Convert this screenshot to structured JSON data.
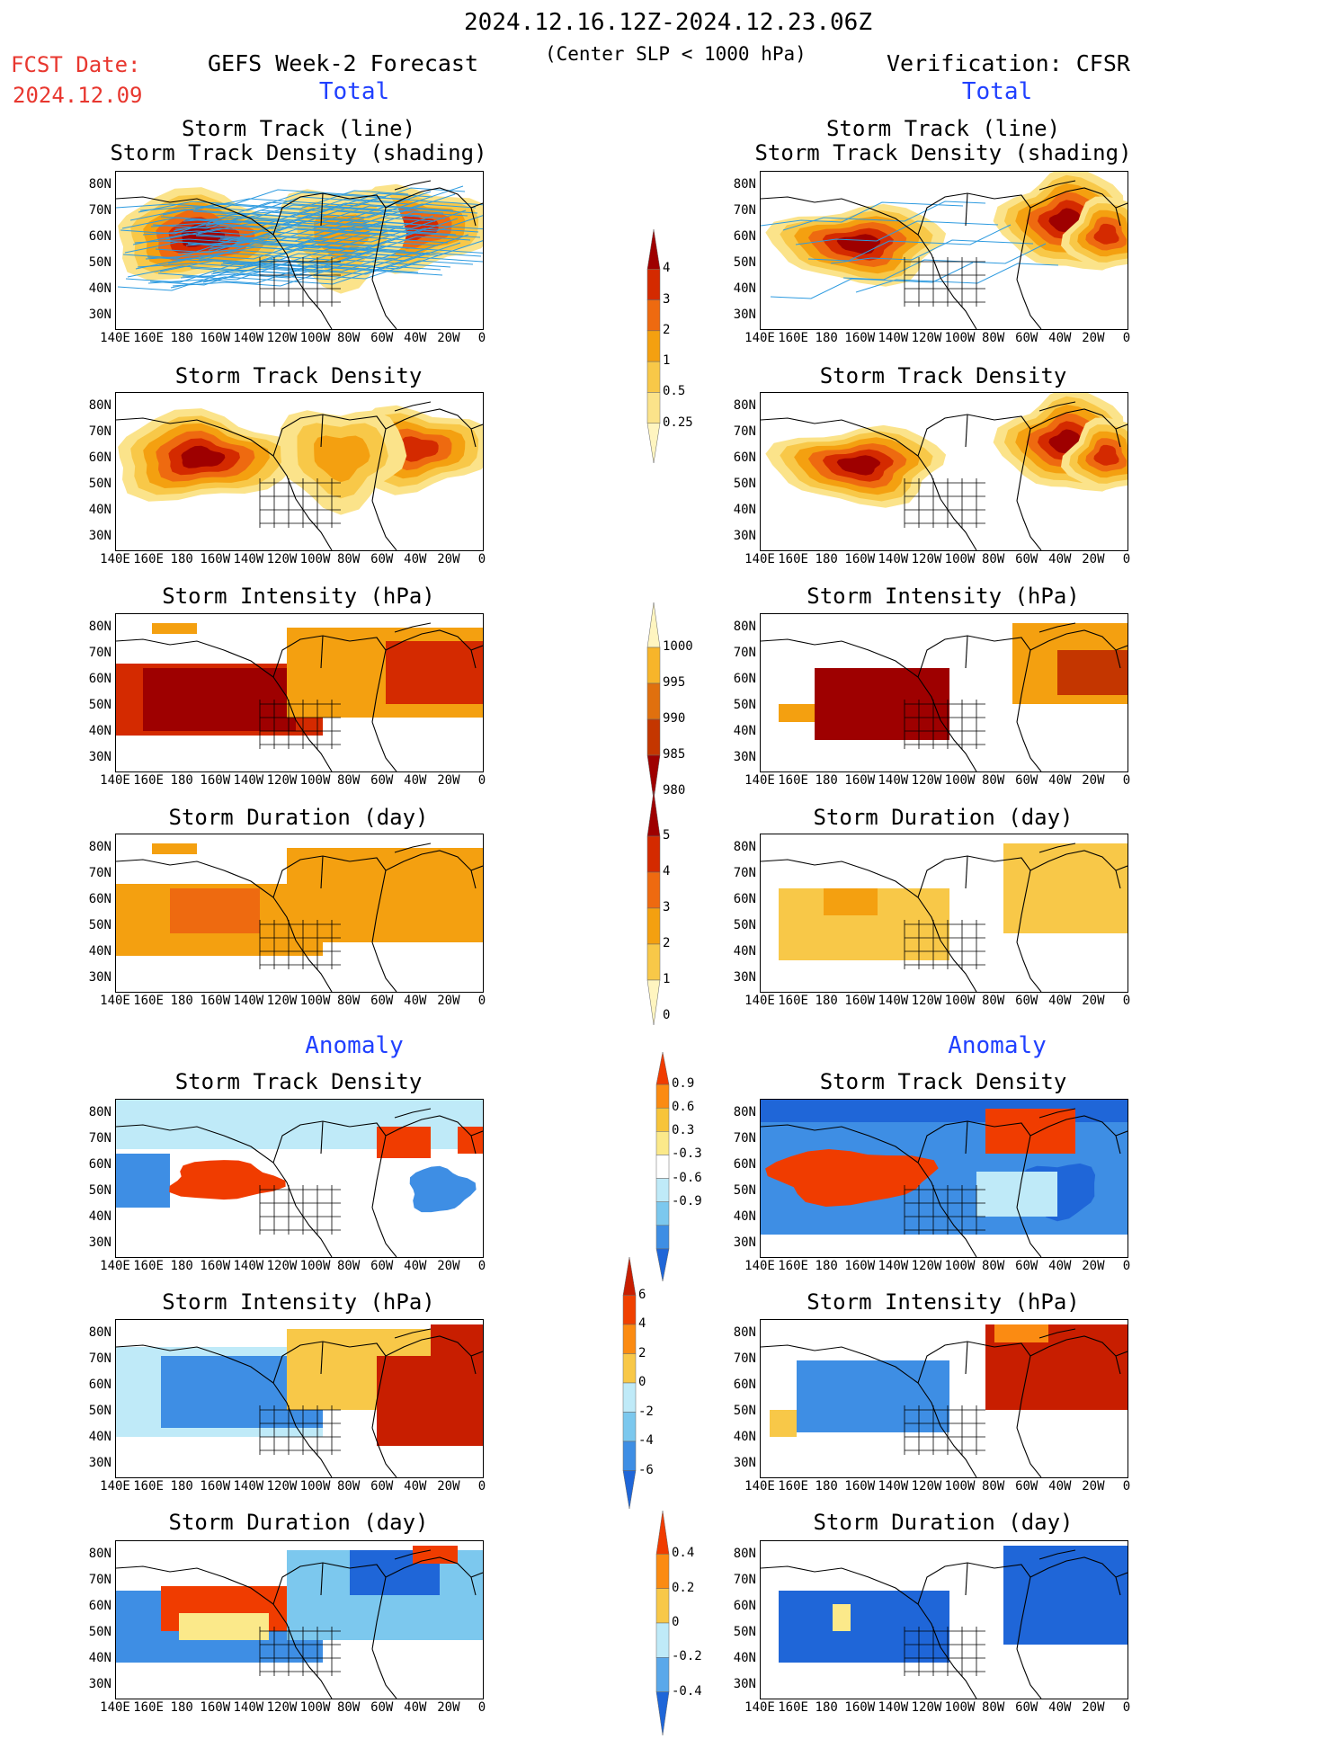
{
  "header": {
    "period": "2024.12.16.12Z-2024.12.23.06Z",
    "fcst_label": "FCST Date:",
    "fcst_date": "2024.12.09",
    "left_title": "GEFS Week-2 Forecast",
    "criterion": "(Center SLP < 1000 hPa)",
    "right_title": "Verification: CFSR",
    "total_label": "Total",
    "anomaly_label": "Anomaly"
  },
  "axes": {
    "lat_ticks": [
      "80N",
      "70N",
      "60N",
      "50N",
      "40N",
      "30N"
    ],
    "lon_ticks": [
      "140E",
      "160E",
      "180",
      "160W",
      "140W",
      "120W",
      "100W",
      "80W",
      "60W",
      "40W",
      "20W",
      "0"
    ]
  },
  "panels": [
    {
      "title": "Storm Track (line)\nStorm Track Density (shading)",
      "row": 0
    },
    {
      "title": "Storm Track Density",
      "row": 1
    },
    {
      "title": "Storm Intensity (hPa)",
      "row": 2
    },
    {
      "title": "Storm Duration (day)",
      "row": 3
    },
    {
      "title": "Storm Track Density",
      "row": 4
    },
    {
      "title": "Storm Intensity (hPa)",
      "row": 5
    },
    {
      "title": "Storm Duration (day)",
      "row": 6
    }
  ],
  "colorbars": [
    {
      "name": "track-density",
      "labels": [
        "4",
        "3",
        "2",
        "1",
        "0.5",
        "0.25"
      ],
      "colors": [
        "#9e0000",
        "#d42a00",
        "#ee6a10",
        "#f4a010",
        "#f8c848",
        "#fbe38a",
        "#fff5c0"
      ]
    },
    {
      "name": "intensity",
      "labels": [
        "1000",
        "995",
        "990",
        "985",
        "980"
      ],
      "colors": [
        "#fff5c0",
        "#f7b52a",
        "#e0700e",
        "#c43600",
        "#9e0000"
      ]
    },
    {
      "name": "duration",
      "labels": [
        "5",
        "4",
        "3",
        "2",
        "1",
        "0"
      ],
      "colors": [
        "#9e0000",
        "#d42a00",
        "#ee6a10",
        "#f4a010",
        "#f8c848",
        "#fff5c0"
      ]
    },
    {
      "name": "anom-density",
      "labels": [
        "0.9",
        "0.6",
        "0.3",
        "-0.3",
        "-0.6",
        "-0.9"
      ],
      "colors": [
        "#f03c00",
        "#fb8b12",
        "#f7c43a",
        "#fbe98a",
        "#ffffff",
        "#bfeaf8",
        "#7cc8ee",
        "#3e8ee4",
        "#1f66d8"
      ]
    },
    {
      "name": "anom-intensity",
      "labels": [
        "6",
        "4",
        "2",
        "0",
        "-2",
        "-4",
        "-6"
      ],
      "colors": [
        "#c81e00",
        "#f04000",
        "#fb8b12",
        "#f8c848",
        "#bfeaf8",
        "#7cc8ee",
        "#3e8ee4",
        "#1f66d8"
      ]
    },
    {
      "name": "anom-duration",
      "labels": [
        "0.4",
        "0.2",
        "0",
        "-0.2",
        "-0.4"
      ],
      "colors": [
        "#f03c00",
        "#fb8b12",
        "#f8c848",
        "#bfeaf8",
        "#5aa8ea",
        "#1f66d8"
      ]
    }
  ],
  "colors": {
    "track_line": "#2e9be0",
    "title_red": "#e8372f",
    "title_blue": "#2040ff"
  }
}
